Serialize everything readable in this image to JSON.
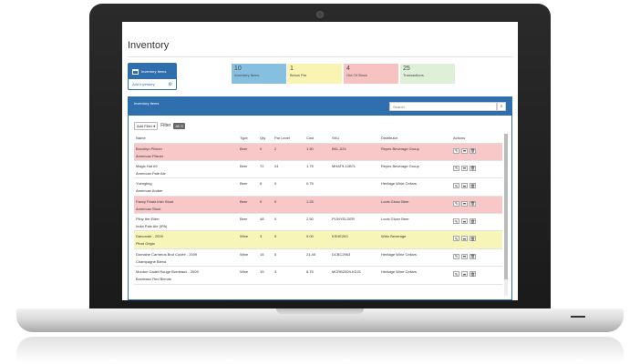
{
  "page": {
    "title": "Inventory"
  },
  "inventory_box": {
    "title": "Inventory Items",
    "add_label": "Add Inventory"
  },
  "stats": [
    {
      "value": "10",
      "label": "Inventory Items"
    },
    {
      "value": "1",
      "label": "Below Par"
    },
    {
      "value": "4",
      "label": "Out Of Stock"
    },
    {
      "value": "25",
      "label": "Transactions"
    }
  ],
  "panel": {
    "title": "Inventory Items",
    "search_placeholder": "Search",
    "add_filter": "Add Filter ▾",
    "filter_label": "Filter",
    "all_tag": "All ⊙"
  },
  "columns": [
    "Name",
    "Type",
    "Qty",
    "Par Level",
    "Cost",
    "SKU",
    "Distributor",
    "Actions"
  ],
  "rows": [
    {
      "name": "Brooklyn Pilsner",
      "sub": "American Pilsner",
      "type": "Beer",
      "qty": "0",
      "par": "2",
      "cost": "1.50",
      "sku": "BKL-024",
      "distributor": "Reyes Beverage Group",
      "status": "red"
    },
    {
      "name": "Magic Hat #9",
      "sub": "American Pale Ale",
      "type": "Beer",
      "qty": "72",
      "par": "24",
      "cost": "1.75",
      "sku": "MHAT9-12BTL",
      "distributor": "Reyes Beverage Group",
      "status": ""
    },
    {
      "name": "Yuengling",
      "sub": "American Amber",
      "type": "Beer",
      "qty": "8",
      "par": "0",
      "cost": "0.75",
      "sku": "",
      "distributor": "Heritage Wine Cellars",
      "status": ""
    },
    {
      "name": "Fancy Feast Irish Stout",
      "sub": "American Stout",
      "type": "Beer",
      "qty": "0",
      "par": "0",
      "cost": "1.25",
      "sku": "",
      "distributor": "Louis Glunz Beer",
      "status": "red"
    },
    {
      "name": "Pliny the Elder",
      "sub": "India Pale Ale (IPA)",
      "type": "Beer",
      "qty": "48",
      "par": "0",
      "cost": "2.50",
      "sku": "PLINYELDER",
      "distributor": "Louis Glunz Beer",
      "status": ""
    },
    {
      "name": "Dancarde - 2009",
      "sub": "Pinot Grigio",
      "type": "Wine",
      "qty": "3",
      "par": "5",
      "cost": "9.00",
      "sku": "KSHE263",
      "distributor": "Wirtz Beverage",
      "status": "yellow"
    },
    {
      "name": "Domaine Carneros Brut Cuvée - 2009",
      "sub": "Champagne Blend",
      "type": "Wine",
      "qty": "15",
      "par": "5",
      "cost": "21.45",
      "sku": "DCBC2963",
      "distributor": "Heritage Wine Cellars",
      "status": ""
    },
    {
      "name": "Mouton Cadet Rouge Bordeaux - 2009",
      "sub": "Bordeaux Red Blends",
      "type": "Wine",
      "qty": "19",
      "par": "3",
      "cost": "8.75",
      "sku": "MCRB2009-KD21",
      "distributor": "Heritage Wine Cellars",
      "status": ""
    }
  ],
  "icons": {
    "edit": "pencil-icon",
    "move": "arrow-icon",
    "delete": "trash-icon"
  }
}
